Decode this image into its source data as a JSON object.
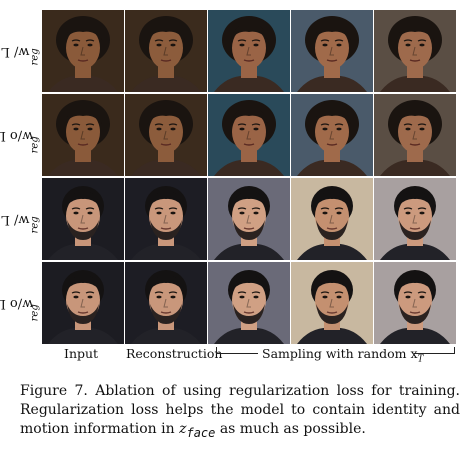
{
  "rows": [
    {
      "label_main": "w/ L",
      "label_sub": "reg"
    },
    {
      "label_main": "w/o L",
      "label_sub": "reg"
    },
    {
      "label_main": "w/ L",
      "label_sub": "reg"
    },
    {
      "label_main": "w/o L",
      "label_sub": "reg"
    }
  ],
  "columns": {
    "input": "Input",
    "reconstruction": "Reconstruction",
    "sampling": "Sampling with random x",
    "sampling_sub": "T"
  },
  "caption": {
    "text": "Figure 7. Ablation of using regularization loss for training. Regularization loss helps the model to contain identity and motion information in",
    "var": "z",
    "var_sub": "face",
    "tail": "as much as possible."
  },
  "images": {
    "subject_1": "portrait-woman",
    "subject_2": "portrait-man"
  }
}
